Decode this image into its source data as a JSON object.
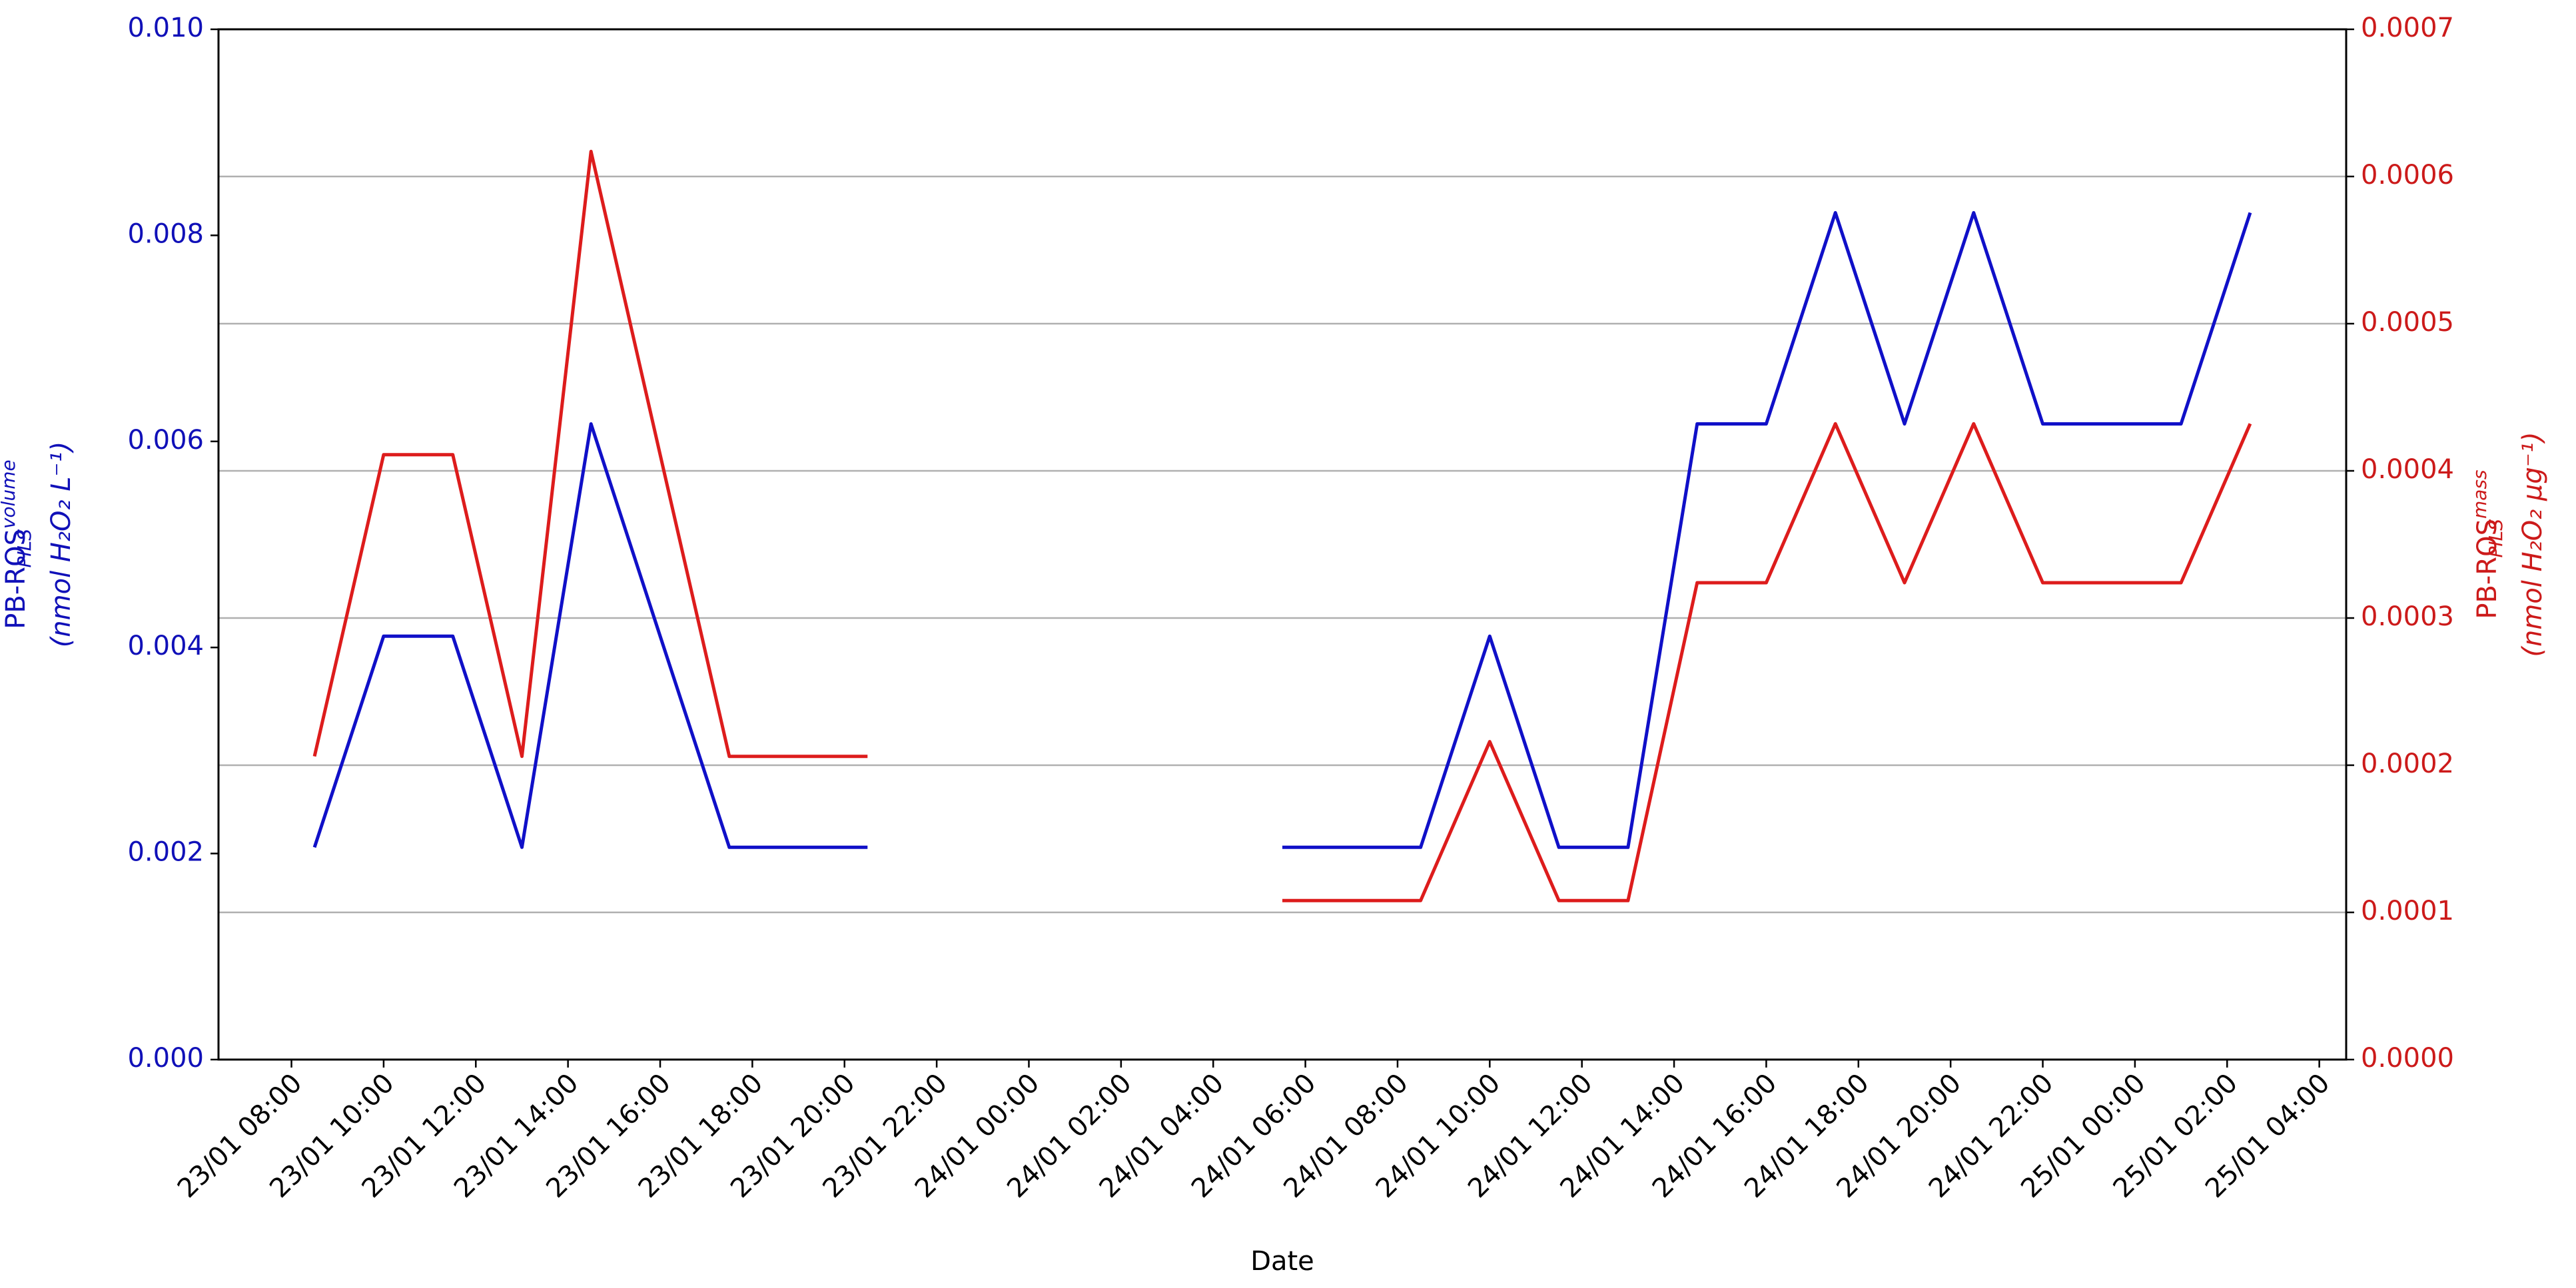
{
  "chart_data": {
    "type": "line",
    "xlabel": "Date",
    "ylabel": {
      "text": "PB-ROS",
      "sup": "volume",
      "sub": "PILS",
      "unit": "(nmol H₂O₂ L⁻¹)",
      "color": "#1010b8"
    },
    "y2label": {
      "text": "PB-ROS",
      "sup": "mass",
      "sub": "PILS",
      "unit": "(nmol H₂O₂ µg⁻¹)",
      "color": "#cc1a1a"
    },
    "x": [
      "23/01 08:30",
      "23/01 10:00",
      "23/01 11:30",
      "23/01 13:00",
      "23/01 14:30",
      "23/01 16:00",
      "23/01 17:30",
      "23/01 19:00",
      "23/01 20:30",
      "23/01 22:00",
      "23/01 23:30",
      "24/01 01:00",
      "24/01 02:30",
      "24/01 04:00",
      "24/01 05:30",
      "24/01 07:00",
      "24/01 08:30",
      "24/01 10:00",
      "24/01 11:30",
      "24/01 13:00",
      "24/01 14:30",
      "24/01 16:00",
      "24/01 17:30",
      "24/01 19:00",
      "24/01 20:30",
      "24/01 22:00",
      "24/01 23:30",
      "25/01 01:00",
      "25/01 02:30"
    ],
    "series": [
      {
        "name": "PB-ROS volume",
        "color": "#1010c8",
        "values": [
          0.00206,
          0.00411,
          0.00411,
          0.00206,
          0.00617,
          0.00411,
          0.00206,
          0.00206,
          0.00206,
          null,
          null,
          null,
          null,
          null,
          0.00206,
          0.00206,
          0.00206,
          0.00411,
          0.00206,
          0.00206,
          0.00617,
          0.00617,
          0.00822,
          0.00617,
          0.00822,
          0.00617,
          0.00617,
          0.00617,
          0.00822
        ]
      },
      {
        "name": "PB-ROS mass",
        "color": "#dd1c1c",
        "axis": "y2",
        "values": [
          0.000206,
          0.000411,
          0.000411,
          0.000206,
          0.000617,
          0.000411,
          0.000206,
          0.000206,
          0.000206,
          null,
          null,
          null,
          null,
          null,
          0.000108,
          0.000108,
          0.000108,
          0.000216,
          0.000108,
          0.000108,
          0.000324,
          0.000324,
          0.000432,
          0.000324,
          0.000432,
          0.000324,
          0.000324,
          0.000324,
          0.000432
        ]
      }
    ],
    "xlim": [
      "23/01 06:25",
      "25/01 04:35"
    ],
    "xticks": [
      "23/01 08:00",
      "23/01 10:00",
      "23/01 12:00",
      "23/01 14:00",
      "23/01 16:00",
      "23/01 18:00",
      "23/01 20:00",
      "23/01 22:00",
      "24/01 00:00",
      "24/01 02:00",
      "24/01 04:00",
      "24/01 06:00",
      "24/01 08:00",
      "24/01 10:00",
      "24/01 12:00",
      "24/01 14:00",
      "24/01 16:00",
      "24/01 18:00",
      "24/01 20:00",
      "24/01 22:00",
      "25/01 00:00",
      "25/01 02:00",
      "25/01 04:00"
    ],
    "ylim": [
      0,
      0.01
    ],
    "yticks": [
      {
        "value": 0,
        "label": "0.000"
      },
      {
        "value": 0.002,
        "label": "0.002"
      },
      {
        "value": 0.004,
        "label": "0.004"
      },
      {
        "value": 0.006,
        "label": "0.006"
      },
      {
        "value": 0.008,
        "label": "0.008"
      },
      {
        "value": 0.01,
        "label": "0.010"
      }
    ],
    "y2lim": [
      0,
      0.0007
    ],
    "y2ticks": [
      {
        "value": 0,
        "label": "0.0000"
      },
      {
        "value": 0.0001,
        "label": "0.0001"
      },
      {
        "value": 0.0002,
        "label": "0.0002"
      },
      {
        "value": 0.0003,
        "label": "0.0003"
      },
      {
        "value": 0.0004,
        "label": "0.0004"
      },
      {
        "value": 0.0005,
        "label": "0.0005"
      },
      {
        "value": 0.0006,
        "label": "0.0006"
      },
      {
        "value": 0.0007,
        "label": "0.0007"
      }
    ],
    "grid": "y2"
  }
}
